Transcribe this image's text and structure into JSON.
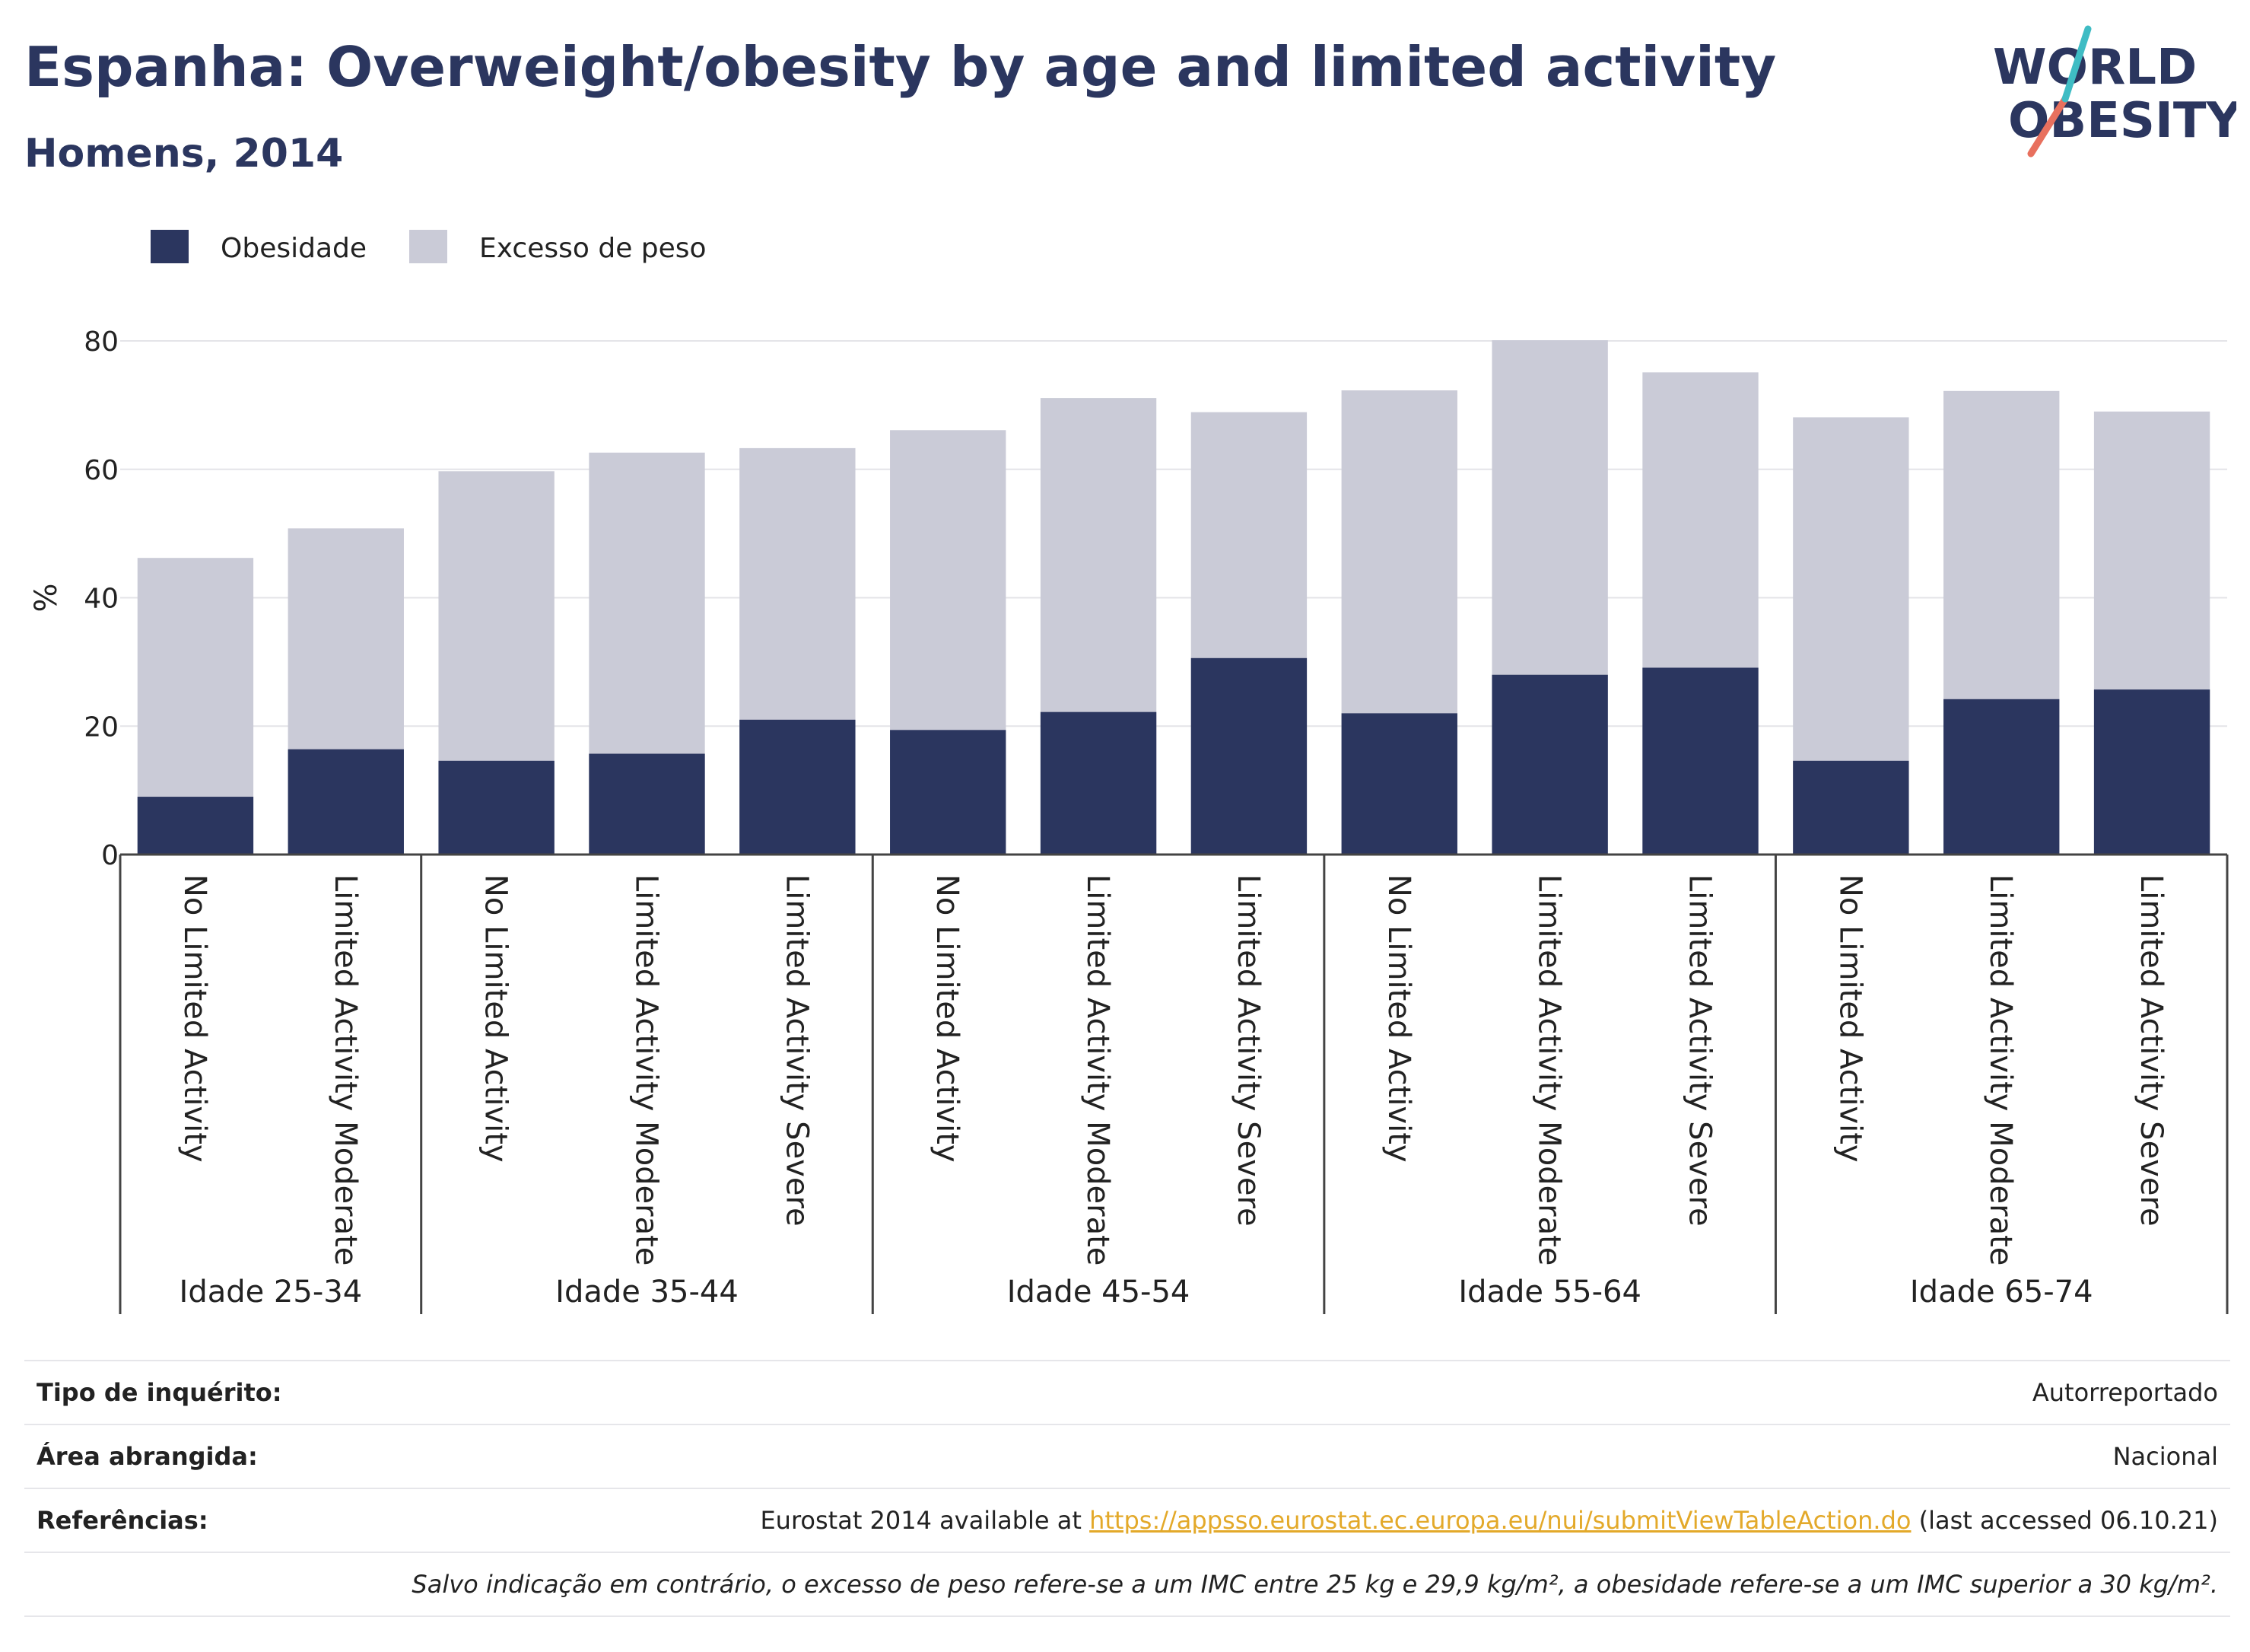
{
  "header": {
    "title": "Espanha: Overweight/obesity by age and limited activity",
    "subtitle": "Homens, 2014"
  },
  "logo": {
    "line1": "WORLD",
    "line2": "OBESITY",
    "color_text": "#2b365f",
    "color_stroke_red": "#e8705e",
    "color_stroke_teal": "#3fbcc4"
  },
  "chart_data": {
    "type": "bar",
    "stacked": false,
    "ylabel": "%",
    "ylim": [
      0,
      80
    ],
    "yticks": [
      0,
      20,
      40,
      60,
      80
    ],
    "grid": true,
    "legend_position": "top-left",
    "colors": {
      "Obesidade": "#2b365f",
      "Excesso de peso": "#cacbd7"
    },
    "categories": [
      "No Limited Activity",
      "Limited Activity Moderate",
      "No Limited Activity",
      "Limited Activity Moderate",
      "Limited Activity Severe",
      "No Limited Activity",
      "Limited Activity Moderate",
      "Limited Activity Severe",
      "No Limited Activity",
      "Limited Activity Moderate",
      "Limited Activity Severe",
      "No Limited Activity",
      "Limited Activity Moderate",
      "Limited Activity Severe"
    ],
    "groups": [
      {
        "label": "Idade 25-34",
        "count": 2
      },
      {
        "label": "Idade 35-44",
        "count": 3
      },
      {
        "label": "Idade 45-54",
        "count": 3
      },
      {
        "label": "Idade 55-64",
        "count": 3
      },
      {
        "label": "Idade 65-74",
        "count": 3
      }
    ],
    "series": [
      {
        "name": "Obesidade",
        "values": [
          9.0,
          16.4,
          14.6,
          15.7,
          21.0,
          19.4,
          22.2,
          30.6,
          22.0,
          28.0,
          29.1,
          14.6,
          24.2,
          25.7
        ]
      },
      {
        "name": "Excesso de peso",
        "values": [
          46.2,
          50.8,
          59.7,
          62.6,
          63.3,
          66.1,
          71.1,
          68.9,
          72.3,
          80.1,
          75.1,
          68.1,
          72.2,
          69.0
        ]
      }
    ]
  },
  "info": {
    "survey_type_label": "Tipo de inquérito:",
    "survey_type_value": "Autorreportado",
    "coverage_label": "Área abrangida:",
    "coverage_value": "Nacional",
    "references_label": "Referências:",
    "references_prefix": "Eurostat 2014 available at ",
    "references_link": "https://appsso.eurostat.ec.europa.eu/nui/submitViewTableAction.do",
    "references_suffix": " (last accessed 06.10.21)",
    "note": "Salvo indicação em contrário, o excesso de peso refere-se a um IMC entre 25 kg e 29,9 kg/m², a obesidade refere-se a um IMC superior a 30 kg/m²."
  }
}
